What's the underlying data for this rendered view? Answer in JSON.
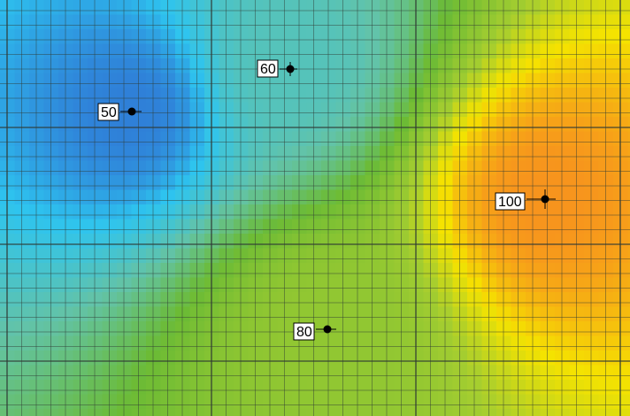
{
  "map": {
    "points": [
      {
        "label": "50",
        "value": 50
      },
      {
        "label": "60",
        "value": 60
      },
      {
        "label": "100",
        "value": 100
      },
      {
        "label": "80",
        "value": 80
      }
    ],
    "colors": {
      "low": "#2f80d8",
      "cyan": "#2ec4ef",
      "teal": "#62c3a9",
      "green": "#6cbb35",
      "lime": "#a4cd30",
      "yellow": "#f5e300",
      "high": "#f7941d",
      "grid_line": "#2f3a34"
    }
  }
}
